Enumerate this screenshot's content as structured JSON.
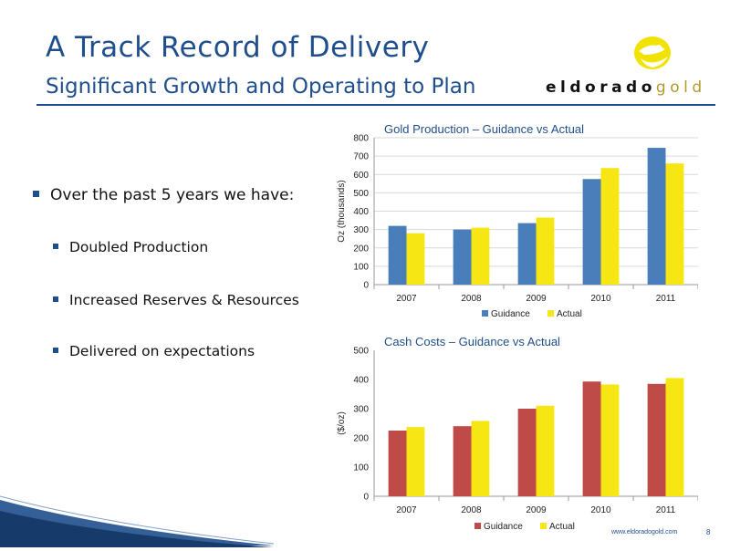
{
  "slide": {
    "title": "A Track Record of Delivery",
    "subtitle": "Significant Growth and Operating to Plan",
    "logo": {
      "text_dark": "eldorado",
      "text_gold": "gold",
      "icon": "eldorado-logo-icon"
    },
    "bullets": {
      "main": "Over the past 5 years we have:",
      "items": [
        "Doubled Production",
        "Increased Reserves & Resources",
        "Delivered on expectations"
      ]
    },
    "footer": {
      "url": "www.eldoradogold.com",
      "page": "8"
    },
    "colors": {
      "brand_blue": "#1f4e8c",
      "guidance_blue": "#4a7ebb",
      "guidance_red": "#be4b48",
      "actual_yellow": "#f5e614",
      "logo_yellow": "#f2e200"
    }
  },
  "chart_data": [
    {
      "type": "bar",
      "title": "Gold Production – Guidance vs Actual",
      "ylabel": "Oz (thousands)",
      "xlabel": "",
      "categories": [
        "2007",
        "2008",
        "2009",
        "2010",
        "2011"
      ],
      "series": [
        {
          "name": "Guidance",
          "values": [
            320,
            300,
            335,
            575,
            745
          ],
          "color": "#4a7ebb"
        },
        {
          "name": "Actual",
          "values": [
            280,
            310,
            365,
            635,
            660
          ],
          "color": "#f5e614"
        }
      ],
      "ylim": [
        0,
        800
      ],
      "yticks": [
        "0",
        "100",
        "200",
        "300",
        "400",
        "500",
        "600",
        "700",
        "800"
      ],
      "grid": true,
      "legend": "bottom"
    },
    {
      "type": "bar",
      "title": "Cash Costs – Guidance vs Actual",
      "ylabel": "($/oz)",
      "xlabel": "",
      "categories": [
        "2007",
        "2008",
        "2009",
        "2010",
        "2011"
      ],
      "series": [
        {
          "name": "Guidance",
          "values": [
            225,
            240,
            300,
            393,
            385
          ],
          "color": "#be4b48"
        },
        {
          "name": "Actual",
          "values": [
            237,
            258,
            310,
            383,
            405
          ],
          "color": "#f5e614"
        }
      ],
      "ylim": [
        0,
        500
      ],
      "yticks": [
        "0",
        "100",
        "200",
        "300",
        "400",
        "500"
      ],
      "grid": false,
      "legend": "bottom"
    }
  ]
}
